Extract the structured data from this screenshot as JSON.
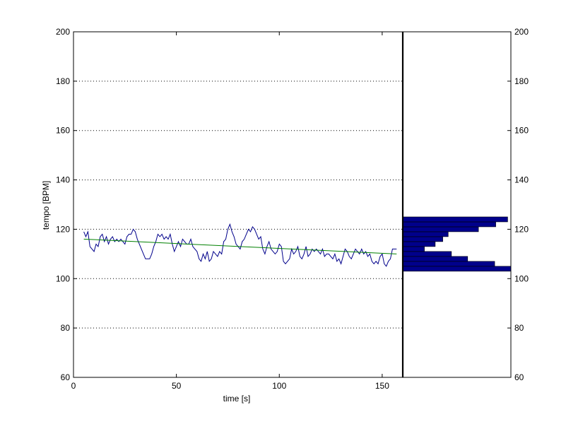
{
  "chart_data": [
    {
      "type": "line",
      "xlabel": "time [s]",
      "ylabel": "tempo [BPM]",
      "xlim": [
        0,
        160
      ],
      "ylim": [
        60,
        200
      ],
      "xticks": [
        0,
        50,
        100,
        150
      ],
      "yticks": [
        60,
        80,
        100,
        120,
        140,
        160,
        180,
        200
      ],
      "grid": "y-dotted",
      "series": [
        {
          "color": "#00008b",
          "x": [
            5,
            6,
            7,
            8,
            9,
            10,
            11,
            12,
            13,
            14,
            15,
            16,
            17,
            18,
            19,
            20,
            21,
            22,
            23,
            24,
            25,
            26,
            27,
            28,
            29,
            30,
            31,
            32,
            33,
            34,
            35,
            36,
            37,
            38,
            39,
            40,
            41,
            42,
            43,
            44,
            45,
            46,
            47,
            48,
            49,
            50,
            51,
            52,
            53,
            54,
            55,
            56,
            57,
            58,
            59,
            60,
            61,
            62,
            63,
            64,
            65,
            66,
            67,
            68,
            69,
            70,
            71,
            72,
            73,
            74,
            75,
            76,
            77,
            78,
            79,
            80,
            81,
            82,
            83,
            84,
            85,
            86,
            87,
            88,
            89,
            90,
            91,
            92,
            93,
            94,
            95,
            96,
            97,
            98,
            99,
            100,
            101,
            102,
            103,
            104,
            105,
            106,
            107,
            108,
            109,
            110,
            111,
            112,
            113,
            114,
            115,
            116,
            117,
            118,
            119,
            120,
            121,
            122,
            123,
            124,
            125,
            126,
            127,
            128,
            129,
            130,
            131,
            132,
            133,
            134,
            135,
            136,
            137,
            138,
            139,
            140,
            141,
            142,
            143,
            144,
            145,
            146,
            147,
            148,
            149,
            150,
            151,
            152,
            153,
            154,
            155,
            156,
            157
          ],
          "y": [
            119,
            117,
            119,
            113,
            112,
            111,
            114,
            113,
            117,
            118,
            115,
            117,
            114,
            116,
            117,
            115,
            116,
            115,
            116,
            115,
            114,
            117,
            118,
            118,
            120,
            119,
            116,
            114,
            112,
            110,
            108,
            108,
            108,
            110,
            113,
            115,
            118,
            117,
            118,
            116,
            117,
            116,
            118,
            114,
            111,
            113,
            115,
            113,
            116,
            115,
            114,
            114,
            116,
            113,
            112,
            111,
            108,
            107,
            110,
            108,
            111,
            107,
            108,
            111,
            110,
            109,
            111,
            110,
            115,
            116,
            120,
            122,
            119,
            117,
            114,
            113,
            112,
            115,
            116,
            118,
            120,
            119,
            121,
            120,
            118,
            116,
            117,
            112,
            110,
            113,
            115,
            112,
            111,
            110,
            111,
            114,
            113,
            107,
            106,
            107,
            108,
            112,
            110,
            111,
            113,
            109,
            108,
            110,
            113,
            109,
            110,
            112,
            111,
            112,
            111,
            110,
            112,
            109,
            110,
            110,
            109,
            108,
            110,
            107,
            108,
            106,
            109,
            112,
            111,
            109,
            108,
            110,
            112,
            111,
            110,
            112,
            110,
            111,
            109,
            110,
            107,
            106,
            107,
            106,
            109,
            110,
            106,
            105,
            107,
            108,
            112,
            112,
            112
          ]
        },
        {
          "color": "#008000",
          "x": [
            5,
            157
          ],
          "y": [
            116,
            110
          ]
        }
      ]
    },
    {
      "type": "bar",
      "orientation": "horizontal",
      "ylim": [
        60,
        200
      ],
      "yticks": [
        60,
        80,
        100,
        120,
        140,
        160,
        180,
        200
      ],
      "color": "#00008b",
      "bins": [
        {
          "from": 103,
          "to": 105,
          "value": 1.0
        },
        {
          "from": 105,
          "to": 107,
          "value": 0.85
        },
        {
          "from": 107,
          "to": 109,
          "value": 0.6
        },
        {
          "from": 109,
          "to": 111,
          "value": 0.45
        },
        {
          "from": 111,
          "to": 113,
          "value": 0.2
        },
        {
          "from": 113,
          "to": 115,
          "value": 0.3
        },
        {
          "from": 115,
          "to": 117,
          "value": 0.37
        },
        {
          "from": 117,
          "to": 119,
          "value": 0.42
        },
        {
          "from": 119,
          "to": 121,
          "value": 0.7
        },
        {
          "from": 121,
          "to": 123,
          "value": 0.86
        },
        {
          "from": 123,
          "to": 125,
          "value": 0.97
        }
      ]
    }
  ]
}
